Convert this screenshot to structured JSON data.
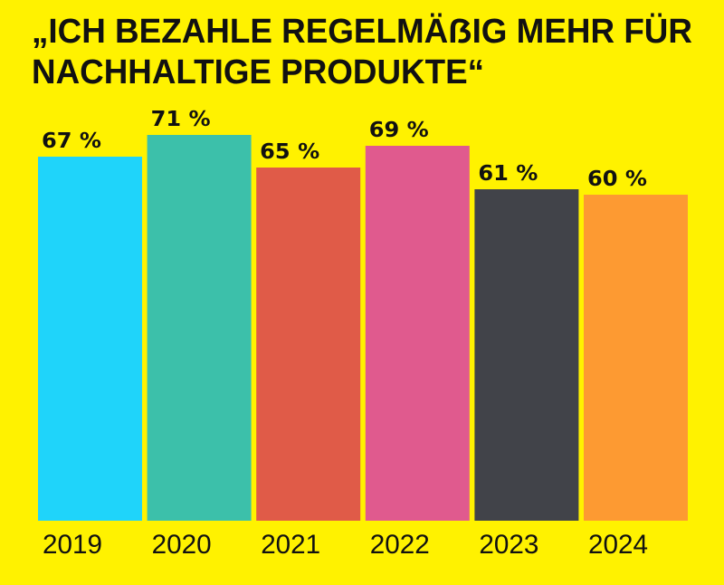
{
  "chart_data": {
    "type": "bar",
    "title_line1": "„ICH BEZAHLE REGELMÄẞIG MEHR FÜR",
    "title_line2": "NACHHALTIGE PRODUKTE“",
    "categories": [
      "2019",
      "2020",
      "2021",
      "2022",
      "2023",
      "2024"
    ],
    "values": [
      67,
      71,
      65,
      69,
      61,
      60
    ],
    "value_labels": [
      "67 %",
      "71 %",
      "65 %",
      "69 %",
      "61 %",
      "60 %"
    ],
    "colors": [
      "#1fd4fa",
      "#3cc0aa",
      "#e05b48",
      "#e05a8e",
      "#414349",
      "#fd9a32"
    ],
    "background": "#fff200",
    "unit": "%",
    "ylim": [
      0,
      100
    ],
    "grid": false,
    "legend": "none"
  }
}
